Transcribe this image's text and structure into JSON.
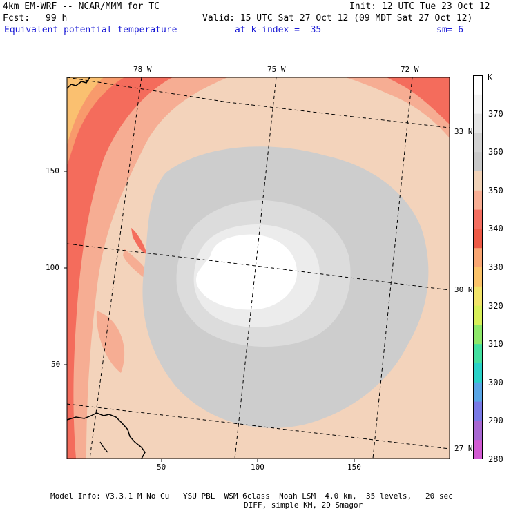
{
  "header": {
    "model_line": "4km EM-WRF -- NCAR/MMM for TC",
    "init": "Init: 12 UTC Tue 23 Oct 12",
    "fcst_label": "Fcst:",
    "fcst_value": "99 h",
    "valid": "Valid: 15 UTC Sat 27 Oct 12 (09 MDT Sat 27 Oct 12)",
    "field": "Equivalent potential temperature",
    "level": "at k-index =  35",
    "smoothing": "sm= 6"
  },
  "axes": {
    "top_lon_labels": [
      "78 W",
      "75 W",
      "72 W"
    ],
    "right_lat_labels": [
      "33 N",
      "30 N",
      "27 N"
    ],
    "left_grid_labels": [
      "150",
      "100",
      "50"
    ],
    "bottom_grid_labels": [
      "50",
      "100",
      "150"
    ]
  },
  "colorbar": {
    "unit": "K",
    "labels": [
      "370",
      "360",
      "350",
      "340",
      "330",
      "320",
      "310",
      "300",
      "290",
      "280"
    ],
    "colors": [
      "#ffffff",
      "#f4f4f4",
      "#e4e4e4",
      "#d2d2d2",
      "#c8c8c8",
      "#f0d2b8",
      "#f8ae94",
      "#f46e60",
      "#ee5a46",
      "#f9a673",
      "#fbc36a",
      "#f2e46a",
      "#d8f05a",
      "#8ee86a",
      "#44e0a0",
      "#2ad2c8",
      "#5aa6e6",
      "#7a7ae6",
      "#a868d2",
      "#d25ad2"
    ]
  },
  "footer": {
    "line1": "Model Info: V3.3.1 M No Cu   YSU PBL  WSM 6class  Noah LSM  4.0 km,  35 levels,   20 sec",
    "line2": "DIFF, simple KM, 2D Smagor"
  },
  "map_colors": {
    "peach": "#f3d3bb",
    "salmon": "#f6ad93",
    "red": "#f46c5c",
    "orange": "#f89a6c",
    "yellow_orange": "#fac070",
    "gray": "#cdcdcd",
    "light_gray": "#e6e6e6",
    "white": "#ffffff"
  }
}
